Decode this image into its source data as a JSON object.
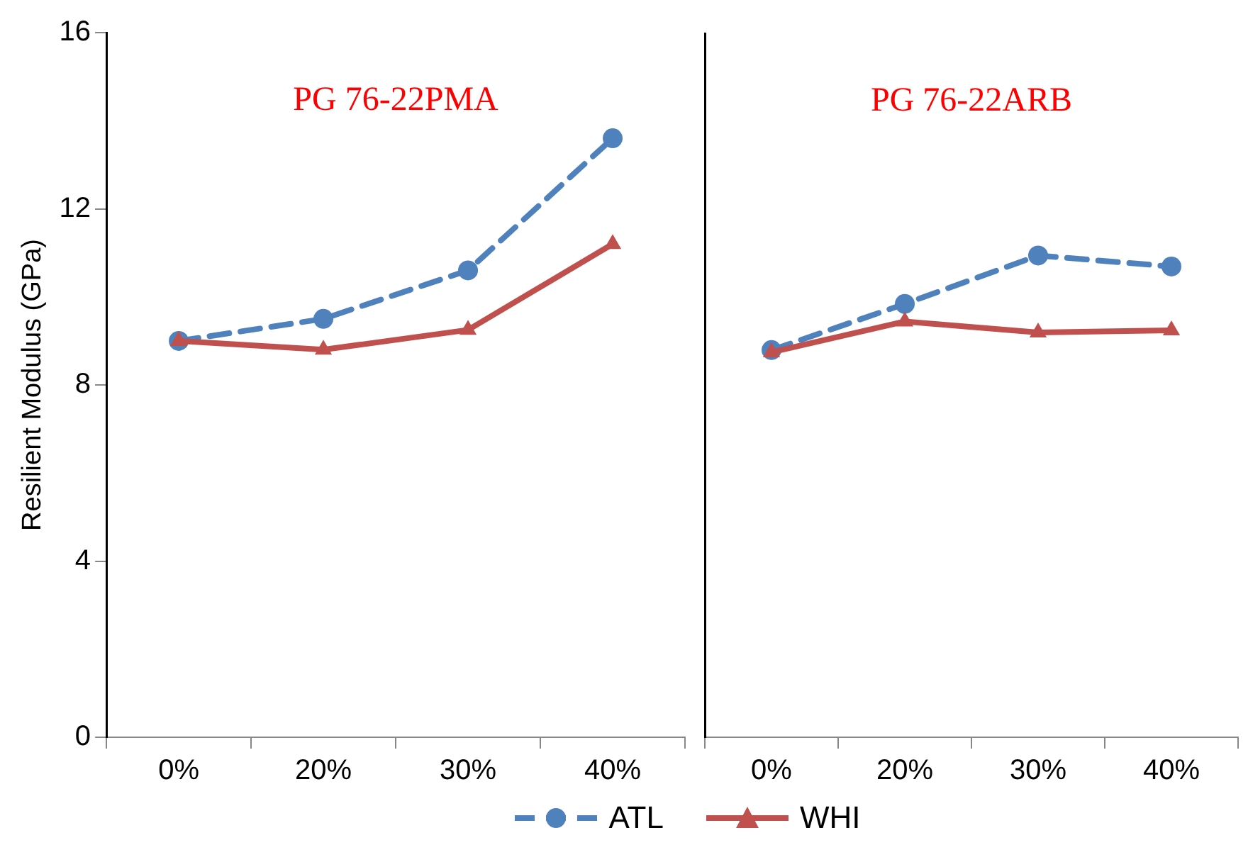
{
  "chart_data": [
    {
      "type": "line",
      "annotations": [
        "PG 76-22PMA"
      ],
      "ylabel": "Resilient Modulus (GPa)",
      "categories": [
        "0%",
        "20%",
        "30%",
        "40%"
      ],
      "series": [
        {
          "name": "ATL",
          "color": "#4f81bd",
          "marker": "circle",
          "line_style": "dashed",
          "values": [
            9.0,
            9.5,
            10.6,
            13.6
          ]
        },
        {
          "name": "WHI",
          "color": "#c0504d",
          "marker": "triangle",
          "line_style": "solid",
          "values": [
            9.0,
            8.8,
            9.25,
            11.2
          ]
        }
      ],
      "ylim": [
        0,
        16
      ],
      "yticks": [
        0,
        4,
        8,
        12,
        16
      ],
      "grid": false,
      "legend": "bottom"
    },
    {
      "type": "line",
      "annotations": [
        "PG 76-22ARB"
      ],
      "categories": [
        "0%",
        "20%",
        "30%",
        "40%"
      ],
      "series": [
        {
          "color": "#4f81bd",
          "marker": "circle",
          "line_style": "dashed",
          "values": [
            8.8,
            9.85,
            10.95,
            10.7
          ]
        },
        {
          "color": "#c0504d",
          "marker": "triangle",
          "line_style": "solid",
          "values": [
            8.75,
            9.45,
            9.2,
            9.25
          ]
        }
      ],
      "ylim": [
        0,
        16
      ],
      "yticks": [
        0,
        4,
        8,
        12,
        16
      ],
      "grid": false,
      "legend": false,
      "tick_labels": "x"
    }
  ]
}
